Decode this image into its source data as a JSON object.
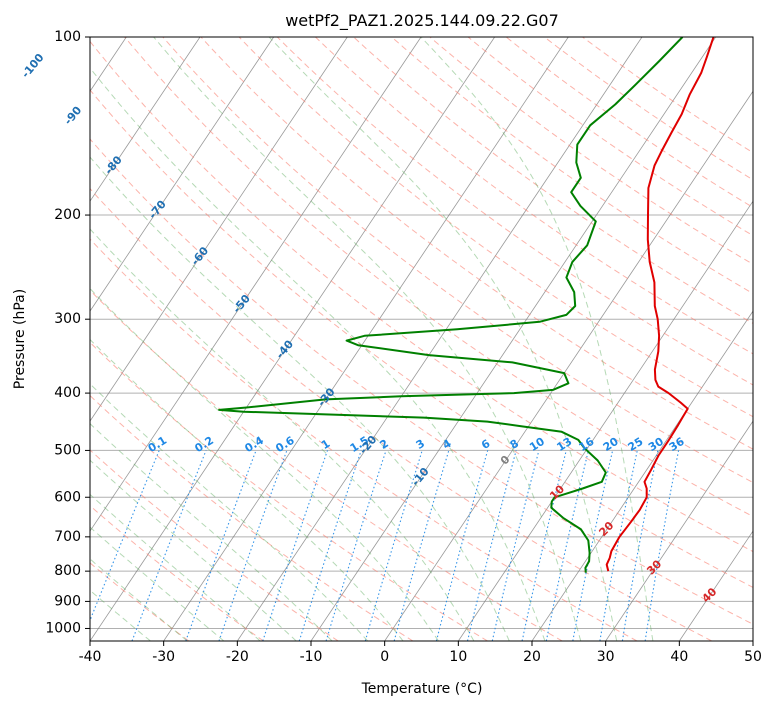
{
  "chart_data": {
    "type": "line",
    "title": "wetPf2_PAZ1.2025.144.09.22.G07",
    "xlabel": "Temperature (°C)",
    "ylabel": "Pressure (hPa)",
    "xlim": [
      -40,
      50
    ],
    "ylim": [
      1050,
      100
    ],
    "y_scale": "log",
    "skew": "skew-T",
    "grid": true,
    "x_ticks": [
      -40,
      -30,
      -20,
      -10,
      0,
      10,
      20,
      30,
      40,
      50
    ],
    "y_ticks": [
      1000,
      900,
      800,
      700,
      600,
      500,
      400,
      300,
      200,
      100
    ],
    "series": [
      {
        "color": "#e00000",
        "points": [
          [
            24.0,
            800
          ],
          [
            23.2,
            780
          ],
          [
            23.0,
            760
          ],
          [
            22.6,
            740
          ],
          [
            22.4,
            700
          ],
          [
            22.6,
            660
          ],
          [
            22.7,
            630
          ],
          [
            22.5,
            600
          ],
          [
            21.7,
            580
          ],
          [
            20.8,
            565
          ],
          [
            20.6,
            540
          ],
          [
            20.3,
            510
          ],
          [
            20.3,
            480
          ],
          [
            20.2,
            455
          ],
          [
            20.1,
            440
          ],
          [
            20.0,
            425
          ],
          [
            18.5,
            415
          ],
          [
            16.0,
            400
          ],
          [
            14.0,
            390
          ],
          [
            13.0,
            380
          ],
          [
            12.0,
            365
          ],
          [
            10.8,
            340
          ],
          [
            9.5,
            320
          ],
          [
            7.8,
            300
          ],
          [
            6.2,
            285
          ],
          [
            4.0,
            260
          ],
          [
            1.5,
            240
          ],
          [
            -0.8,
            220
          ],
          [
            -3.0,
            200
          ],
          [
            -5.4,
            180
          ],
          [
            -6.6,
            165
          ],
          [
            -7.0,
            155
          ],
          [
            -7.3,
            145
          ],
          [
            -7.6,
            135
          ],
          [
            -8.3,
            125
          ],
          [
            -8.7,
            115
          ],
          [
            -9.4,
            108
          ],
          [
            -10.3,
            100
          ]
        ]
      },
      {
        "color": "#008000",
        "points": [
          [
            21.1,
            805
          ],
          [
            20.6,
            790
          ],
          [
            20.5,
            770
          ],
          [
            19.8,
            745
          ],
          [
            18.5,
            710
          ],
          [
            16.5,
            680
          ],
          [
            13.0,
            650
          ],
          [
            10.5,
            625
          ],
          [
            10.0,
            610
          ],
          [
            10.0,
            600
          ],
          [
            11.5,
            590
          ],
          [
            13.0,
            580
          ],
          [
            15.0,
            565
          ],
          [
            14.7,
            545
          ],
          [
            12.5,
            520
          ],
          [
            9.5,
            495
          ],
          [
            8.0,
            480
          ],
          [
            5.0,
            465
          ],
          [
            -1.0,
            455
          ],
          [
            -6.0,
            447
          ],
          [
            -15.0,
            440
          ],
          [
            -40.0,
            430
          ],
          [
            -43.5,
            427
          ],
          [
            -40.0,
            423
          ],
          [
            -30.0,
            410
          ],
          [
            -20.0,
            405
          ],
          [
            -5.0,
            400
          ],
          [
            0.0,
            395
          ],
          [
            1.5,
            385
          ],
          [
            0.0,
            370
          ],
          [
            -8.0,
            355
          ],
          [
            -20.0,
            345
          ],
          [
            -30.5,
            332
          ],
          [
            -32.5,
            326
          ],
          [
            -30.5,
            320
          ],
          [
            -18.5,
            312
          ],
          [
            -8.0,
            303
          ],
          [
            -5.0,
            295
          ],
          [
            -4.6,
            285
          ],
          [
            -6.0,
            270
          ],
          [
            -8.4,
            255
          ],
          [
            -9.0,
            240
          ],
          [
            -8.5,
            225
          ],
          [
            -9.5,
            205
          ],
          [
            -13.0,
            193
          ],
          [
            -15.5,
            183
          ],
          [
            -15.5,
            173
          ],
          [
            -17.5,
            163
          ],
          [
            -19.0,
            152
          ],
          [
            -19.0,
            141
          ],
          [
            -17.5,
            130
          ],
          [
            -16.5,
            120
          ],
          [
            -15.5,
            110
          ],
          [
            -14.5,
            100
          ]
        ]
      }
    ],
    "isotherm_labels": [
      "-100",
      "-90",
      "-80",
      "-70",
      "-60",
      "-50",
      "-40",
      "-30",
      "-20",
      "-10"
    ],
    "mixing_ratio_labels": [
      "0.1",
      "0.2",
      "0.4",
      "0.6",
      "1",
      "1.5",
      "2",
      "3",
      "4",
      "6",
      "8",
      "10",
      "13",
      "16",
      "20",
      "25",
      "30",
      "36"
    ],
    "moist_adiabat_labels": [
      "0",
      "10",
      "20",
      "30",
      "40"
    ],
    "colors": {
      "temperature": "#e00000",
      "dewpoint": "#008000",
      "isotherm": "#808080",
      "dry_adiabat": "#fa8072",
      "moist_adiabat": "#5aaa5a",
      "mixing_ratio": "#1e88e5",
      "isotherm_label": "#1f6fb2",
      "moist_label": "#d62728"
    }
  }
}
